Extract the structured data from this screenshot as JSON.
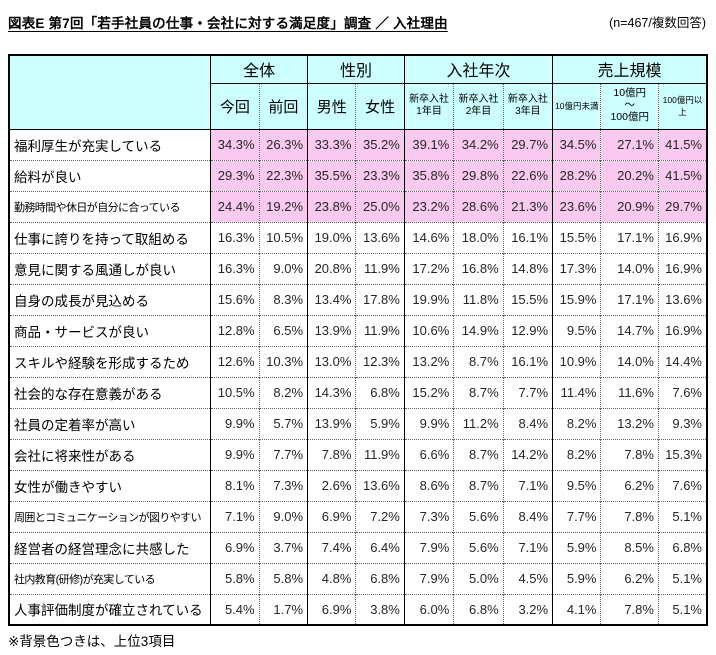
{
  "page": {
    "title": "図表E 第7回「若手社員の仕事・会社に対する満足度」調査 ／ 入社理由",
    "sample_note": "(n=467/複数回答)",
    "footnote": "※背景色つきは、上位3項目"
  },
  "colors": {
    "header_bg": "#CCFFFF",
    "highlight_bg": "#F9C9EF",
    "border": "#000000"
  },
  "chart_data": {
    "type": "table",
    "column_groups": [
      {
        "label": "全体",
        "span": 2
      },
      {
        "label": "性別",
        "span": 2
      },
      {
        "label": "入社年次",
        "span": 3
      },
      {
        "label": "売上規模",
        "span": 3
      }
    ],
    "columns": [
      "今回",
      "前回",
      "男性",
      "女性",
      "新卒入社\n1年目",
      "新卒入社\n2年目",
      "新卒入社\n3年目",
      "10億円未満",
      "10億円\n～\n100億円",
      "100億円以上"
    ],
    "rows": [
      {
        "label": "福利厚生が充実している",
        "highlight": true,
        "values": [
          "34.3%",
          "26.3%",
          "33.3%",
          "35.2%",
          "39.1%",
          "34.2%",
          "29.7%",
          "34.5%",
          "27.1%",
          "41.5%"
        ]
      },
      {
        "label": "給料が良い",
        "highlight": true,
        "values": [
          "29.3%",
          "22.3%",
          "35.5%",
          "23.3%",
          "35.8%",
          "29.8%",
          "22.6%",
          "28.2%",
          "20.2%",
          "41.5%"
        ]
      },
      {
        "label": "勤務時間や休日が自分に合っている",
        "highlight": true,
        "values": [
          "24.4%",
          "19.2%",
          "23.8%",
          "25.0%",
          "23.2%",
          "28.6%",
          "21.3%",
          "23.6%",
          "20.9%",
          "29.7%"
        ]
      },
      {
        "label": "仕事に誇りを持って取組める",
        "highlight": false,
        "values": [
          "16.3%",
          "10.5%",
          "19.0%",
          "13.6%",
          "14.6%",
          "18.0%",
          "16.1%",
          "15.5%",
          "17.1%",
          "16.9%"
        ]
      },
      {
        "label": "意見に関する風通しが良い",
        "highlight": false,
        "values": [
          "16.3%",
          "9.0%",
          "20.8%",
          "11.9%",
          "17.2%",
          "16.8%",
          "14.8%",
          "17.3%",
          "14.0%",
          "16.9%"
        ]
      },
      {
        "label": "自身の成長が見込める",
        "highlight": false,
        "values": [
          "15.6%",
          "8.3%",
          "13.4%",
          "17.8%",
          "19.9%",
          "11.8%",
          "15.5%",
          "15.9%",
          "17.1%",
          "13.6%"
        ]
      },
      {
        "label": "商品・サービスが良い",
        "highlight": false,
        "values": [
          "12.8%",
          "6.5%",
          "13.9%",
          "11.9%",
          "10.6%",
          "14.9%",
          "12.9%",
          "9.5%",
          "14.7%",
          "16.9%"
        ]
      },
      {
        "label": "スキルや経験を形成するため",
        "highlight": false,
        "values": [
          "12.6%",
          "10.3%",
          "13.0%",
          "12.3%",
          "13.2%",
          "8.7%",
          "16.1%",
          "10.9%",
          "14.0%",
          "14.4%"
        ]
      },
      {
        "label": "社会的な存在意義がある",
        "highlight": false,
        "values": [
          "10.5%",
          "8.2%",
          "14.3%",
          "6.8%",
          "15.2%",
          "8.7%",
          "7.7%",
          "11.4%",
          "11.6%",
          "7.6%"
        ]
      },
      {
        "label": "社員の定着率が高い",
        "highlight": false,
        "values": [
          "9.9%",
          "5.7%",
          "13.9%",
          "5.9%",
          "9.9%",
          "11.2%",
          "8.4%",
          "8.2%",
          "13.2%",
          "9.3%"
        ]
      },
      {
        "label": "会社に将来性がある",
        "highlight": false,
        "values": [
          "9.9%",
          "7.7%",
          "7.8%",
          "11.9%",
          "6.6%",
          "8.7%",
          "14.2%",
          "8.2%",
          "7.8%",
          "15.3%"
        ]
      },
      {
        "label": "女性が働きやすい",
        "highlight": false,
        "values": [
          "8.1%",
          "7.3%",
          "2.6%",
          "13.6%",
          "8.6%",
          "8.7%",
          "7.1%",
          "9.5%",
          "6.2%",
          "7.6%"
        ]
      },
      {
        "label": "周囲とコミュニケーションが図りやすい",
        "highlight": false,
        "values": [
          "7.1%",
          "9.0%",
          "6.9%",
          "7.2%",
          "7.3%",
          "5.6%",
          "8.4%",
          "7.7%",
          "7.8%",
          "5.1%"
        ]
      },
      {
        "label": "経営者の経営理念に共感した",
        "highlight": false,
        "values": [
          "6.9%",
          "3.7%",
          "7.4%",
          "6.4%",
          "7.9%",
          "5.6%",
          "7.1%",
          "5.9%",
          "8.5%",
          "6.8%"
        ]
      },
      {
        "label": "社内教育(研修)が充実している",
        "highlight": false,
        "values": [
          "5.8%",
          "5.8%",
          "4.8%",
          "6.8%",
          "7.9%",
          "5.0%",
          "4.5%",
          "5.9%",
          "6.2%",
          "5.1%"
        ]
      },
      {
        "label": "人事評価制度が確立されている",
        "highlight": false,
        "values": [
          "5.4%",
          "1.7%",
          "6.9%",
          "3.8%",
          "6.0%",
          "6.8%",
          "3.2%",
          "4.1%",
          "7.8%",
          "5.1%"
        ]
      }
    ]
  }
}
